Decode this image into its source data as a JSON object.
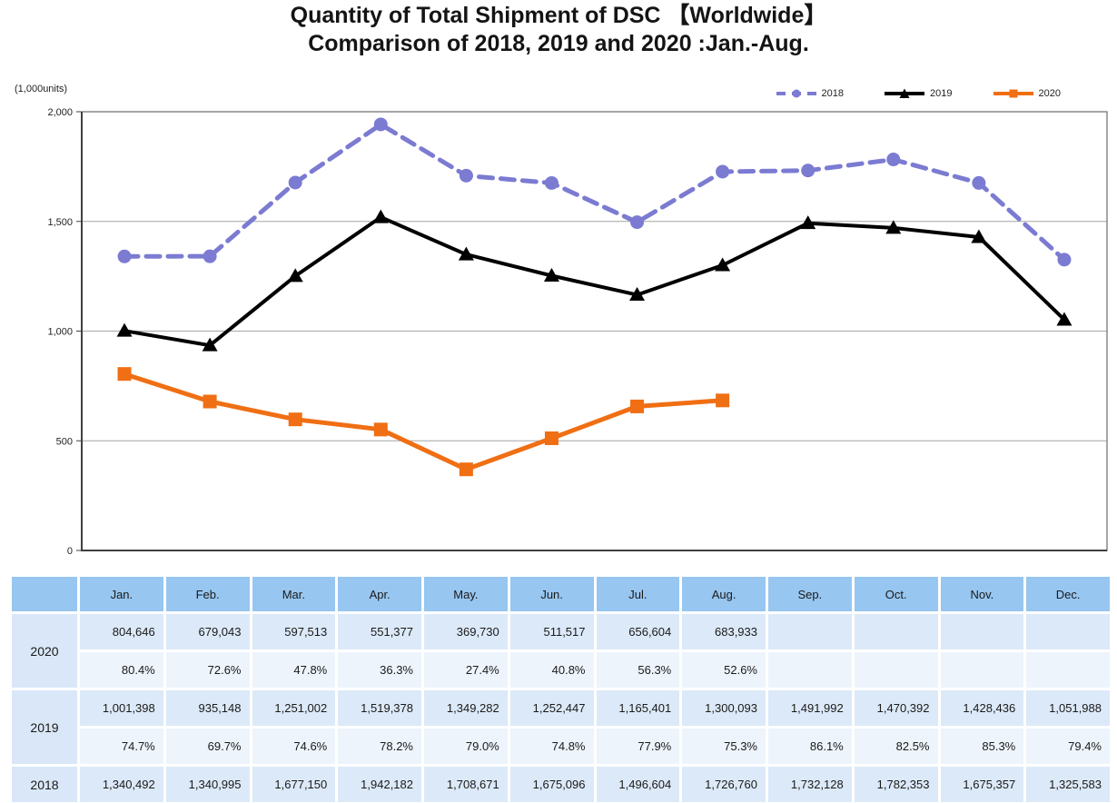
{
  "title": {
    "line1": "Quantity of Total Shipment of DSC 【Worldwide】",
    "line2": "Comparison of 2018, 2019 and 2020 :Jan.-Aug."
  },
  "chart": {
    "unit_label": "(1,000units)"
  },
  "chart_data": {
    "type": "line",
    "title": "Quantity of Total Shipment of DSC [Worldwide] Comparison of 2018, 2019 and 2020 :Jan.-Aug.",
    "unit": "1,000units",
    "categories": [
      "Jan.",
      "Feb.",
      "Mar.",
      "Apr.",
      "May.",
      "Jun.",
      "Jul.",
      "Aug.",
      "Sep.",
      "Oct.",
      "Nov.",
      "Dec."
    ],
    "ylim": [
      0,
      2000
    ],
    "yticks": [
      0,
      500,
      1000,
      1500,
      2000
    ],
    "ytick_labels": [
      "0",
      "500",
      "1,000",
      "1,500",
      "2,000"
    ],
    "grid": true,
    "legend_position": "top-right",
    "series": [
      {
        "name": "2018",
        "color": "#7B7BD2",
        "marker": "circle",
        "dash": true,
        "values": [
          1340.492,
          1340.995,
          1677.15,
          1942.182,
          1708.671,
          1675.096,
          1496.604,
          1726.76,
          1732.128,
          1782.353,
          1675.357,
          1325.583
        ]
      },
      {
        "name": "2019",
        "color": "#000000",
        "marker": "triangle",
        "dash": false,
        "values": [
          1001.398,
          935.148,
          1251.002,
          1519.378,
          1349.282,
          1252.447,
          1165.401,
          1300.093,
          1491.992,
          1470.392,
          1428.436,
          1051.988
        ]
      },
      {
        "name": "2020",
        "color": "#F06F14",
        "marker": "square",
        "dash": false,
        "values": [
          804.646,
          679.043,
          597.513,
          551.377,
          369.73,
          511.517,
          656.604,
          683.933
        ]
      }
    ]
  },
  "table": {
    "corner": "",
    "columns": [
      "Jan.",
      "Feb.",
      "Mar.",
      "Apr.",
      "May.",
      "Jun.",
      "Jul.",
      "Aug.",
      "Sep.",
      "Oct.",
      "Nov.",
      "Dec."
    ],
    "rows": [
      {
        "year": "2020",
        "values": [
          "804,646",
          "679,043",
          "597,513",
          "551,377",
          "369,730",
          "511,517",
          "656,604",
          "683,933",
          "",
          "",
          "",
          ""
        ],
        "percents": [
          "80.4%",
          "72.6%",
          "47.8%",
          "36.3%",
          "27.4%",
          "40.8%",
          "56.3%",
          "52.6%",
          "",
          "",
          "",
          ""
        ]
      },
      {
        "year": "2019",
        "values": [
          "1,001,398",
          "935,148",
          "1,251,002",
          "1,519,378",
          "1,349,282",
          "1,252,447",
          "1,165,401",
          "1,300,093",
          "1,491,992",
          "1,470,392",
          "1,428,436",
          "1,051,988"
        ],
        "percents": [
          "74.7%",
          "69.7%",
          "74.6%",
          "78.2%",
          "79.0%",
          "74.8%",
          "77.9%",
          "75.3%",
          "86.1%",
          "82.5%",
          "85.3%",
          "79.4%"
        ]
      },
      {
        "year": "2018",
        "values": [
          "1,340,492",
          "1,340,995",
          "1,677,150",
          "1,942,182",
          "1,708,671",
          "1,675,096",
          "1,496,604",
          "1,726,760",
          "1,732,128",
          "1,782,353",
          "1,675,357",
          "1,325,583"
        ],
        "percents": null
      }
    ]
  }
}
